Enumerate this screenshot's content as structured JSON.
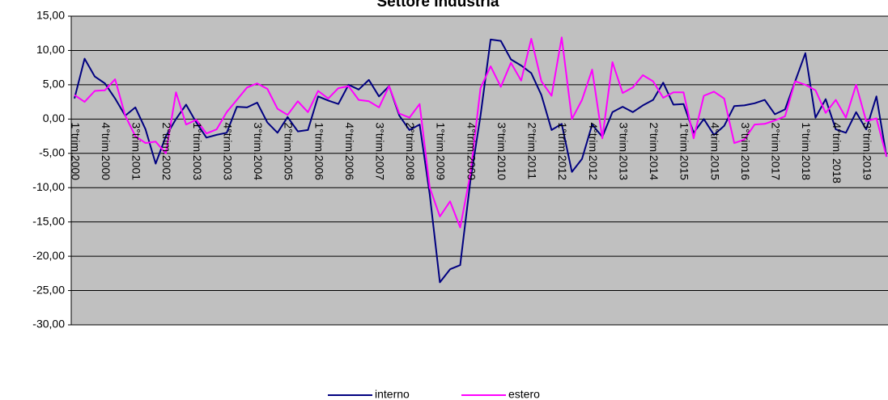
{
  "chart_data": {
    "type": "line",
    "title": "Settore Industria",
    "categories": [
      "1°trim.2000",
      null,
      null,
      "4°trim.2000",
      null,
      null,
      "3°trim.2001",
      null,
      null,
      "2°trim.2002",
      null,
      null,
      "1°trim.2003",
      null,
      null,
      "4°trim.2003",
      null,
      null,
      "3°trim.2004",
      null,
      null,
      "2°trim.2005",
      null,
      null,
      "1°trim.2006",
      null,
      null,
      "4°trim.2006",
      null,
      null,
      "3°trim.2007",
      null,
      null,
      "2°trim.2008",
      null,
      null,
      "1°trim.2009",
      null,
      null,
      "4°trim.2009",
      null,
      null,
      "3°trim.2010",
      null,
      null,
      "2°trim.2011",
      null,
      null,
      "1°trim.2012",
      null,
      null,
      "4°trim.2012",
      null,
      null,
      "3°trim.2013",
      null,
      null,
      "2°trim.2014",
      null,
      null,
      "1°trim.2015",
      null,
      null,
      "4°trim.2015",
      null,
      null,
      "3°trim.2016",
      null,
      null,
      "2°trim.2017",
      null,
      null,
      "1°trim.2018",
      null,
      null,
      "4°trim. 2018",
      null,
      null,
      "3°trim.2019",
      null,
      null
    ],
    "series": [
      {
        "name": "interno",
        "color": "#000080",
        "values": [
          3.0,
          8.8,
          6.2,
          5.2,
          3.0,
          0.5,
          1.7,
          -1.5,
          -6.5,
          -2.5,
          0.0,
          2.1,
          -0.5,
          -2.7,
          -2.3,
          -2.0,
          1.8,
          1.7,
          2.4,
          -0.5,
          -2.0,
          0.3,
          -1.8,
          -1.6,
          3.3,
          2.7,
          2.2,
          5.0,
          4.3,
          5.7,
          3.3,
          4.8,
          0.5,
          -1.6,
          -0.8,
          -11.0,
          -23.8,
          -21.9,
          -21.3,
          -9.0,
          0.5,
          11.6,
          11.4,
          8.7,
          7.8,
          6.7,
          3.5,
          -1.6,
          -0.7,
          -7.7,
          -5.8,
          -0.8,
          -2.6,
          1.0,
          1.8,
          1.0,
          2.0,
          2.8,
          5.3,
          2.1,
          2.2,
          -2.0,
          0.0,
          -2.3,
          -1.0,
          1.9,
          2.0,
          2.3,
          2.8,
          0.7,
          1.4,
          5.5,
          9.6,
          0.2,
          2.9,
          -1.5,
          -2.0,
          1.0,
          -1.5,
          3.3,
          -5.5
        ]
      },
      {
        "name": "estero",
        "color": "#ff00ff",
        "values": [
          3.5,
          2.5,
          4.1,
          4.2,
          5.8,
          0.5,
          -2.5,
          -3.5,
          -3.3,
          -5.0,
          3.9,
          -0.8,
          -0.1,
          -2.1,
          -1.5,
          1.0,
          2.8,
          4.6,
          5.2,
          4.4,
          1.5,
          0.6,
          2.6,
          1.0,
          4.1,
          3.0,
          4.5,
          4.8,
          2.8,
          2.6,
          1.7,
          4.8,
          0.8,
          0.2,
          2.2,
          -10.0,
          -14.2,
          -12.0,
          -15.8,
          -8.0,
          4.5,
          7.7,
          4.7,
          8.2,
          5.6,
          11.7,
          5.5,
          3.4,
          11.9,
          0.0,
          2.8,
          7.2,
          -2.8,
          8.3,
          3.8,
          4.6,
          6.4,
          5.5,
          3.1,
          3.9,
          3.9,
          -2.8,
          3.4,
          4.0,
          3.0,
          -3.5,
          -3.0,
          -0.8,
          -0.7,
          -0.2,
          0.4,
          5.5,
          5.0,
          4.2,
          0.9,
          2.8,
          0.2,
          5.0,
          -0.3,
          0.1,
          -5.5
        ]
      }
    ],
    "ylim": [
      -30,
      15
    ],
    "yticks": [
      {
        "value": -30,
        "label": "-30,00"
      },
      {
        "value": -25,
        "label": "-25,00"
      },
      {
        "value": -20,
        "label": "-20,00"
      },
      {
        "value": -15,
        "label": "-15,00"
      },
      {
        "value": -10,
        "label": "-10,00"
      },
      {
        "value": -5,
        "label": "-5,00"
      },
      {
        "value": 0,
        "label": "0,00"
      },
      {
        "value": 5,
        "label": "5,00"
      },
      {
        "value": 10,
        "label": "10,00"
      },
      {
        "value": 15,
        "label": "15,00"
      }
    ],
    "grid": true,
    "legend": "bottom"
  }
}
